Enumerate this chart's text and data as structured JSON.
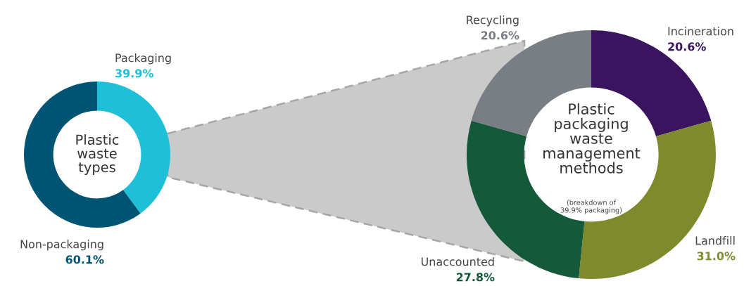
{
  "chart_data": [
    {
      "type": "donut",
      "title": "Plastic\nwaste\ntypes",
      "categories": [
        "Packaging",
        "Non-packaging"
      ],
      "values": [
        39.9,
        60.1
      ],
      "value_labels": [
        "39.9%",
        "60.1%"
      ],
      "colors": [
        "#1dc0d6",
        "#005473"
      ]
    },
    {
      "type": "donut",
      "title": "Plastic\npackaging\nwaste\nmanagement\nmethods",
      "subtitle": "(breakdown of\n39.9% packaging)",
      "categories": [
        "Incineration",
        "Landfill",
        "Unaccounted",
        "Recycling"
      ],
      "values": [
        20.6,
        31.0,
        27.8,
        20.6
      ],
      "value_labels": [
        "20.6%",
        "31.0%",
        "27.8%",
        "20.6%"
      ],
      "colors": [
        "#3b1460",
        "#7f8a2c",
        "#145a3a",
        "#797d84"
      ]
    }
  ]
}
